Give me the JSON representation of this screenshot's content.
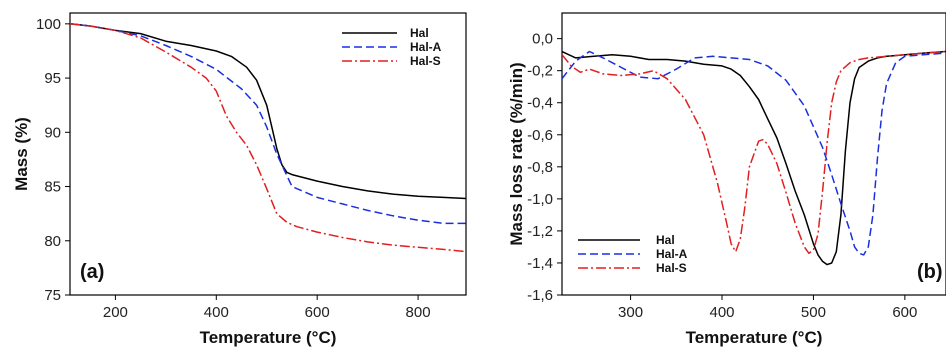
{
  "chart_data": [
    {
      "type": "line",
      "panel_label": "(a)",
      "xlabel": "Temperature (°C)",
      "ylabel": "Mass (%)",
      "xlim": [
        110,
        895
      ],
      "ylim": [
        75,
        101
      ],
      "xticks": [
        200,
        400,
        600,
        800
      ],
      "yticks": [
        75,
        80,
        85,
        90,
        95,
        100
      ],
      "legend_position": "top-right",
      "series": [
        {
          "name": "Hal",
          "color": "#000000",
          "dash": "solid",
          "x": [
            110,
            150,
            200,
            250,
            300,
            350,
            400,
            430,
            460,
            480,
            500,
            510,
            520,
            530,
            540,
            550,
            600,
            650,
            700,
            750,
            800,
            850,
            895
          ],
          "y": [
            100,
            99.8,
            99.4,
            99.1,
            98.4,
            98.0,
            97.5,
            97.0,
            96.0,
            94.8,
            92.5,
            90.5,
            88.5,
            87.0,
            86.3,
            86.1,
            85.5,
            85.0,
            84.6,
            84.3,
            84.1,
            84.0,
            83.9
          ]
        },
        {
          "name": "Hal-A",
          "color": "#1a2fe0",
          "dash": "8,4",
          "x": [
            110,
            150,
            200,
            250,
            300,
            350,
            400,
            450,
            480,
            500,
            520,
            540,
            550,
            600,
            650,
            700,
            750,
            800,
            850,
            895
          ],
          "y": [
            100,
            99.8,
            99.4,
            98.9,
            98.0,
            97.0,
            95.8,
            94.0,
            92.5,
            90.5,
            88.0,
            86.0,
            85.0,
            84.0,
            83.4,
            82.8,
            82.3,
            81.9,
            81.6,
            81.6
          ]
        },
        {
          "name": "Hal-S",
          "color": "#e02020",
          "dash": "10,3,2,3",
          "x": [
            110,
            150,
            200,
            250,
            300,
            350,
            380,
            400,
            420,
            440,
            460,
            480,
            500,
            520,
            540,
            560,
            600,
            650,
            700,
            750,
            800,
            850,
            895
          ],
          "y": [
            100,
            99.8,
            99.4,
            98.7,
            97.4,
            96.0,
            95.0,
            93.8,
            91.5,
            90.0,
            88.8,
            87.0,
            84.8,
            82.5,
            81.7,
            81.3,
            80.8,
            80.3,
            79.9,
            79.6,
            79.4,
            79.2,
            79.0
          ]
        }
      ]
    },
    {
      "type": "line",
      "panel_label": "(b)",
      "xlabel": "Temperature (°C)",
      "ylabel": "Mass loss rate (%/min)",
      "xlim": [
        225,
        645
      ],
      "ylim": [
        -1.6,
        0.16
      ],
      "xticks": [
        300,
        400,
        500,
        600
      ],
      "yticks": [
        0.0,
        -0.2,
        -0.4,
        -0.6,
        -0.8,
        -1.0,
        -1.2,
        -1.4,
        -1.6
      ],
      "ytick_labels": [
        "0,0",
        "-0,2",
        "-0,4",
        "-0,6",
        "-0,8",
        "-1,0",
        "-1,2",
        "-1,4",
        "-1,6"
      ],
      "legend_position": "bottom-left",
      "series": [
        {
          "name": "Hal",
          "color": "#000000",
          "dash": "solid",
          "x": [
            225,
            240,
            260,
            280,
            300,
            320,
            340,
            360,
            380,
            400,
            410,
            420,
            430,
            440,
            450,
            460,
            470,
            480,
            490,
            500,
            505,
            510,
            515,
            520,
            525,
            530,
            535,
            540,
            545,
            550,
            560,
            570,
            580,
            600,
            620,
            645
          ],
          "y": [
            -0.08,
            -0.12,
            -0.11,
            -0.1,
            -0.11,
            -0.13,
            -0.13,
            -0.14,
            -0.16,
            -0.17,
            -0.19,
            -0.23,
            -0.3,
            -0.38,
            -0.5,
            -0.62,
            -0.78,
            -0.95,
            -1.1,
            -1.28,
            -1.35,
            -1.39,
            -1.41,
            -1.4,
            -1.33,
            -1.1,
            -0.7,
            -0.4,
            -0.25,
            -0.18,
            -0.14,
            -0.12,
            -0.11,
            -0.1,
            -0.09,
            -0.08
          ]
        },
        {
          "name": "Hal-A",
          "color": "#1a2fe0",
          "dash": "8,4",
          "x": [
            225,
            240,
            255,
            270,
            290,
            310,
            330,
            350,
            370,
            390,
            410,
            430,
            450,
            470,
            490,
            510,
            520,
            530,
            540,
            545,
            550,
            555,
            560,
            565,
            570,
            575,
            580,
            590,
            600,
            620,
            645
          ],
          "y": [
            -0.25,
            -0.14,
            -0.08,
            -0.12,
            -0.18,
            -0.24,
            -0.25,
            -0.19,
            -0.12,
            -0.11,
            -0.12,
            -0.13,
            -0.17,
            -0.26,
            -0.42,
            -0.68,
            -0.85,
            -1.03,
            -1.2,
            -1.3,
            -1.34,
            -1.35,
            -1.3,
            -1.1,
            -0.75,
            -0.45,
            -0.28,
            -0.15,
            -0.11,
            -0.1,
            -0.09
          ]
        },
        {
          "name": "Hal-S",
          "color": "#e02020",
          "dash": "10,3,2,3",
          "x": [
            225,
            235,
            245,
            255,
            270,
            290,
            310,
            325,
            340,
            360,
            380,
            395,
            405,
            410,
            415,
            420,
            425,
            430,
            440,
            445,
            450,
            460,
            470,
            480,
            490,
            495,
            500,
            505,
            510,
            515,
            520,
            525,
            530,
            540,
            550,
            560,
            580,
            600,
            620,
            645
          ],
          "y": [
            -0.1,
            -0.17,
            -0.21,
            -0.19,
            -0.22,
            -0.23,
            -0.22,
            -0.2,
            -0.25,
            -0.38,
            -0.6,
            -0.9,
            -1.15,
            -1.28,
            -1.33,
            -1.25,
            -1.05,
            -0.8,
            -0.64,
            -0.63,
            -0.66,
            -0.78,
            -0.96,
            -1.15,
            -1.3,
            -1.34,
            -1.32,
            -1.22,
            -0.95,
            -0.65,
            -0.4,
            -0.27,
            -0.2,
            -0.15,
            -0.13,
            -0.12,
            -0.11,
            -0.1,
            -0.09,
            -0.08
          ]
        }
      ]
    }
  ]
}
